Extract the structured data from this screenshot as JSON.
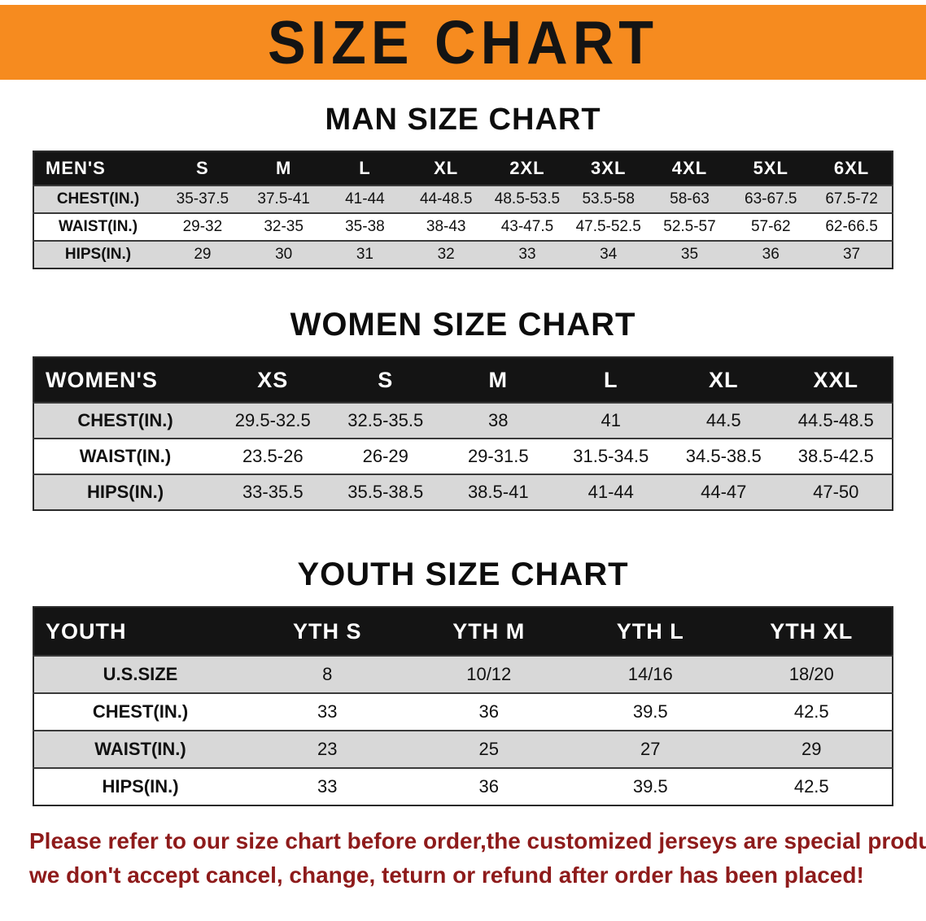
{
  "banner": {
    "title": "SIZE CHART"
  },
  "colors": {
    "banner_bg": "#f68b1f",
    "banner_text": "#141414",
    "header_row_bg": "#141414",
    "header_row_text": "#ffffff",
    "stripe_bg": "#d8d8d8",
    "disclaimer_text": "#8e1b1b"
  },
  "sections": [
    {
      "heading": "MAN SIZE CHART",
      "table": {
        "header": [
          "MEN'S",
          "S",
          "M",
          "L",
          "XL",
          "2XL",
          "3XL",
          "4XL",
          "5XL",
          "6XL"
        ],
        "rows": [
          [
            "CHEST(IN.)",
            "35-37.5",
            "37.5-41",
            "41-44",
            "44-48.5",
            "48.5-53.5",
            "53.5-58",
            "58-63",
            "63-67.5",
            "67.5-72"
          ],
          [
            "WAIST(IN.)",
            "29-32",
            "32-35",
            "35-38",
            "38-43",
            "43-47.5",
            "47.5-52.5",
            "52.5-57",
            "57-62",
            "62-66.5"
          ],
          [
            "HIPS(IN.)",
            "29",
            "30",
            "31",
            "32",
            "33",
            "34",
            "35",
            "36",
            "37"
          ]
        ]
      }
    },
    {
      "heading": "WOMEN SIZE CHART",
      "table": {
        "header": [
          "WOMEN'S",
          "XS",
          "S",
          "M",
          "L",
          "XL",
          "XXL"
        ],
        "rows": [
          [
            "CHEST(IN.)",
            "29.5-32.5",
            "32.5-35.5",
            "38",
            "41",
            "44.5",
            "44.5-48.5"
          ],
          [
            "WAIST(IN.)",
            "23.5-26",
            "26-29",
            "29-31.5",
            "31.5-34.5",
            "34.5-38.5",
            "38.5-42.5"
          ],
          [
            "HIPS(IN.)",
            "33-35.5",
            "35.5-38.5",
            "38.5-41",
            "41-44",
            "44-47",
            "47-50"
          ]
        ]
      }
    },
    {
      "heading": "YOUTH SIZE CHART",
      "table": {
        "header": [
          "YOUTH",
          "YTH S",
          "YTH M",
          "YTH L",
          "YTH XL"
        ],
        "rows": [
          [
            "U.S.SIZE",
            "8",
            "10/12",
            "14/16",
            "18/20"
          ],
          [
            "CHEST(IN.)",
            "33",
            "36",
            "39.5",
            "42.5"
          ],
          [
            "WAIST(IN.)",
            "23",
            "25",
            "27",
            "29"
          ],
          [
            "HIPS(IN.)",
            "33",
            "36",
            "39.5",
            "42.5"
          ]
        ]
      }
    }
  ],
  "disclaimer": {
    "line1": "Please refer to our size chart before order,the customized jerseys are special products,",
    "line2": "we don't accept cancel, change, teturn or refund after order has been placed!"
  }
}
